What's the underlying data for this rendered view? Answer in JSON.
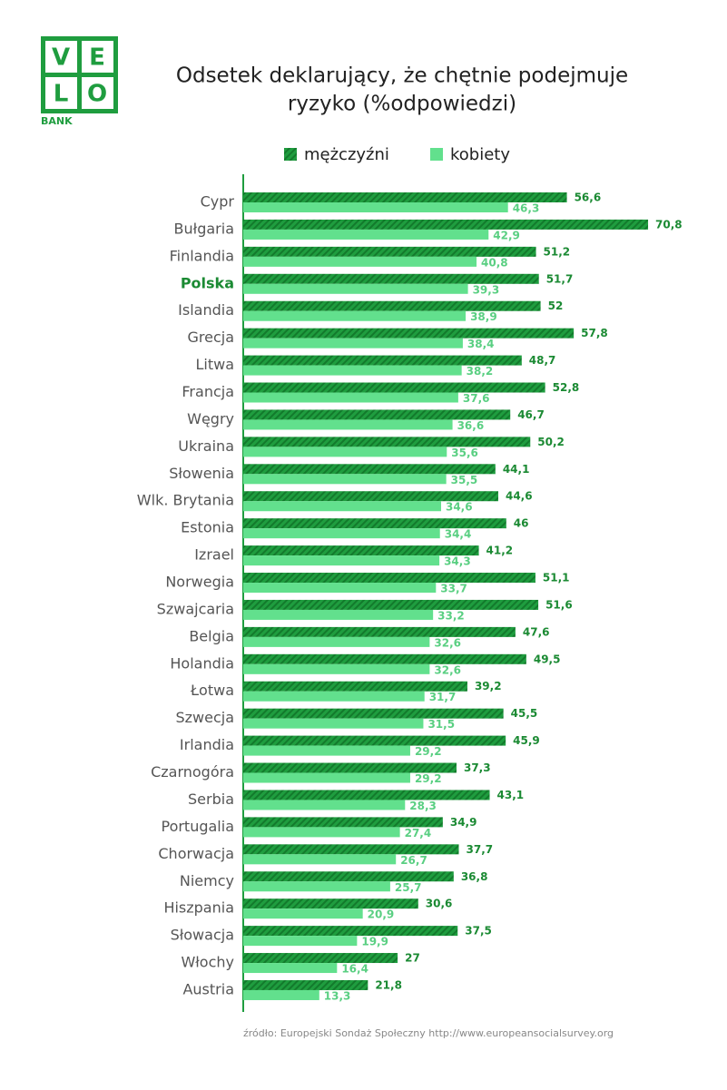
{
  "logo": {
    "letters": [
      "V",
      "E",
      "L",
      "O"
    ],
    "text": "BANK"
  },
  "chart_data": {
    "type": "hbar",
    "title": [
      "Odsetek deklarujący, że chętnie podejmuje",
      "ryzyko (%odpowiedzi)"
    ],
    "categories": [
      "Cypr",
      "Bułgaria",
      "Finlandia",
      "Polska",
      "Islandia",
      "Grecja",
      "Litwa",
      "Francja",
      "Węgry",
      "Ukraina",
      "Słowenia",
      "Wlk. Brytania",
      "Estonia",
      "Izrael",
      "Norwegia",
      "Szwajcaria",
      "Belgia",
      "Holandia",
      "Łotwa",
      "Szwecja",
      "Irlandia",
      "Czarnogóra",
      "Serbia",
      "Portugalia",
      "Chorwacja",
      "Niemcy",
      "Hiszpania",
      "Słowacja",
      "Włochy",
      "Austria"
    ],
    "highlight": "Polska",
    "series": [
      {
        "name": "mężczyźni",
        "color": "#1f9d3f",
        "hatch": true,
        "label_color": "#1b8a33",
        "values": [
          56.6,
          70.8,
          51.2,
          51.7,
          52,
          57.8,
          48.7,
          52.8,
          46.7,
          50.2,
          44.1,
          44.6,
          46,
          41.2,
          51.1,
          51.6,
          47.6,
          49.5,
          39.2,
          45.5,
          45.9,
          37.3,
          43.1,
          34.9,
          37.7,
          36.8,
          30.6,
          37.5,
          27,
          21.8
        ],
        "value_labels": [
          "56,6",
          "70,8",
          "51,2",
          "51,7",
          "52",
          "57,8",
          "48,7",
          "52,8",
          "46,7",
          "50,2",
          "44,1",
          "44,6",
          "46",
          "41,2",
          "51,1",
          "51,6",
          "47,6",
          "49,5",
          "39,2",
          "45,5",
          "45,9",
          "37,3",
          "43,1",
          "34,9",
          "37,7",
          "36,8",
          "30,6",
          "37,5",
          "27",
          "21,8"
        ]
      },
      {
        "name": "kobiety",
        "color": "#62e08d",
        "hatch": false,
        "label_color": "#5acf82",
        "values": [
          46.3,
          42.9,
          40.8,
          39.3,
          38.9,
          38.4,
          38.2,
          37.6,
          36.6,
          35.6,
          35.5,
          34.6,
          34.4,
          34.3,
          33.7,
          33.2,
          32.6,
          32.6,
          31.7,
          31.5,
          29.2,
          29.2,
          28.3,
          27.4,
          26.7,
          25.7,
          20.9,
          19.9,
          16.4,
          13.3
        ],
        "value_labels": [
          "46,3",
          "42,9",
          "40,8",
          "39,3",
          "38,9",
          "38,4",
          "38,2",
          "37,6",
          "36,6",
          "35,6",
          "35,5",
          "34,6",
          "34,4",
          "34,3",
          "33,7",
          "33,2",
          "32,6",
          "32,6",
          "31,7",
          "31,5",
          "29,2",
          "29,2",
          "28,3",
          "27,4",
          "26,7",
          "25,7",
          "20,9",
          "19,9",
          "16,4",
          "13,3"
        ]
      }
    ],
    "xlim": [
      0,
      80
    ],
    "source": "źródło: Europejski Sondaż Społeczny http://www.europeansocialsurvey.org"
  }
}
